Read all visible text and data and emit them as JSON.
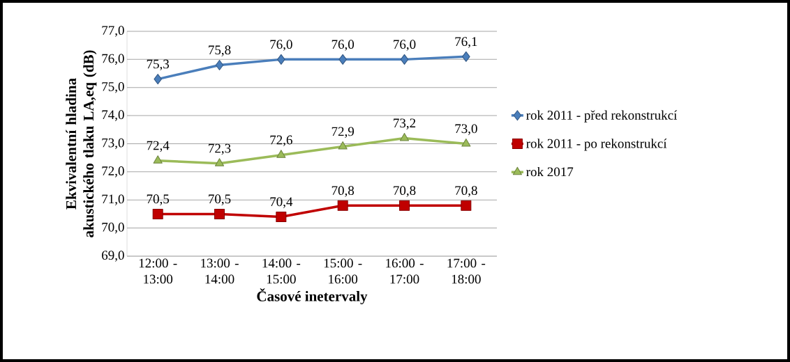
{
  "chart_data": {
    "type": "line",
    "xlabel": "Časové inetervaly",
    "ylabel": "Ekvivalentní hladina akustického tlaku LA,eq (dB)",
    "categories": [
      "12:00 - 13:00",
      "13:00 - 14:00",
      "14:00 - 15:00",
      "15:00 - 16:00",
      "16:00 - 17:00",
      "17:00 - 18:00"
    ],
    "series": [
      {
        "name": "rok 2011 - před rekonstrukcí",
        "color": "#4a7ebb",
        "marker": "diamond",
        "values": [
          75.3,
          75.8,
          76.0,
          76.0,
          76.0,
          76.1
        ],
        "value_labels": [
          "75,3",
          "75,8",
          "76,0",
          "76,0",
          "76,0",
          "76,1"
        ]
      },
      {
        "name": "rok 2011 - po rekonstrukcí",
        "color": "#c00000",
        "marker": "square",
        "values": [
          70.5,
          70.5,
          70.4,
          70.8,
          70.8,
          70.8
        ],
        "value_labels": [
          "70,5",
          "70,5",
          "70,4",
          "70,8",
          "70,8",
          "70,8"
        ]
      },
      {
        "name": "rok 2017",
        "color": "#9bbb59",
        "marker": "triangle",
        "values": [
          72.4,
          72.3,
          72.6,
          72.9,
          73.2,
          73.0
        ],
        "value_labels": [
          "72,4",
          "72,3",
          "72,6",
          "72,9",
          "73,2",
          "73,0"
        ]
      }
    ],
    "ylim": [
      69,
      77
    ],
    "yticks": [
      {
        "value": 69,
        "label": "69,0"
      },
      {
        "value": 70,
        "label": "70,0"
      },
      {
        "value": 71,
        "label": "71,0"
      },
      {
        "value": 72,
        "label": "72,0"
      },
      {
        "value": 73,
        "label": "73,0"
      },
      {
        "value": 74,
        "label": "74,0"
      },
      {
        "value": 75,
        "label": "75,0"
      },
      {
        "value": 76,
        "label": "76,0"
      },
      {
        "value": 77,
        "label": "77,0"
      }
    ],
    "grid": "y",
    "legend": "right"
  }
}
